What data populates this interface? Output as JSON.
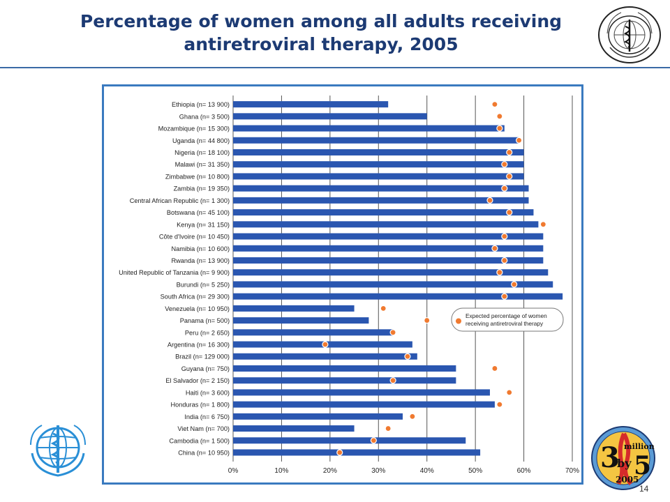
{
  "slide": {
    "title_line1": "Percentage of women among all adults receiving",
    "title_line2": "antiretroviral therapy, 2005",
    "page_number": "14"
  },
  "logos": {
    "top_right": "who-emblem-seal",
    "top_right_text_top": "WORLD HEALTH ORGANIZATION",
    "top_right_text_bottom": "ORGANISATION MONDIALE DE LA SANTÉ",
    "bottom_left": "who-emblem",
    "bottom_right": "3-by-5-logo",
    "bottom_right_text": [
      "3",
      "million",
      "by",
      "5",
      "2005"
    ]
  },
  "colors": {
    "title": "#1c3a73",
    "bar": "#2a56b0",
    "dot": "#f07a30",
    "frame": "#3a7abf",
    "grid": "#555555"
  },
  "chart_data": {
    "type": "bar",
    "orientation": "horizontal",
    "categories": [
      "Ethiopia (n= 13 900)",
      "Ghana (n= 3 500)",
      "Mozambique (n= 15 300)",
      "Uganda (n= 44 800)",
      "Nigeria (n= 18 100)",
      "Malawi (n= 31 350)",
      "Zimbabwe (n= 10 800)",
      "Zambia (n= 19 350)",
      "Central African Republic (n= 1 300)",
      "Botswana (n= 45 100)",
      "Kenya (n= 31 150)",
      "Côte d'Ivoire (n= 10 450)",
      "Namibia (n= 10 600)",
      "Rwanda (n= 13 900)",
      "United Republic of Tanzania (n= 9 900)",
      "Burundi (n= 5 250)",
      "South Africa (n= 29 300)",
      "Venezuela (n= 10 950)",
      "Panama (n= 500)",
      "Peru (n= 2 650)",
      "Argentina (n= 16 300)",
      "Brazil (n= 129 000)",
      "Guyana (n= 750)",
      "El Salvador (n= 2 150)",
      "Haiti (n= 3 600)",
      "Honduras (n= 1 800)",
      "India (n= 6 750)",
      "Viet Nam (n= 700)",
      "Cambodia (n= 1 500)",
      "China (n= 10 950)"
    ],
    "series": [
      {
        "values": [
          32,
          40,
          56,
          59,
          60,
          60,
          60,
          61,
          61,
          62,
          63,
          64,
          64,
          64,
          65,
          66,
          68,
          25,
          28,
          33,
          37,
          38,
          46,
          46,
          53,
          54,
          35,
          25,
          48,
          51
        ]
      },
      {
        "name": "Expected percentage of women receiving antiretroviral therapy",
        "values": [
          54,
          55,
          55,
          59,
          57,
          56,
          57,
          56,
          53,
          57,
          64,
          56,
          54,
          56,
          55,
          58,
          56,
          31,
          40,
          33,
          19,
          36,
          54,
          33,
          57,
          55,
          37,
          32,
          29,
          22
        ]
      }
    ],
    "xticks": [
      "0%",
      "10%",
      "20%",
      "30%",
      "40%",
      "50%",
      "60%",
      "70%"
    ],
    "xlim": [
      0,
      70
    ],
    "grid": "vertical",
    "legend_position": "right-middle",
    "legend_line1": "Expected percentage of women",
    "legend_line2": "receiving antiretroviral therapy"
  }
}
